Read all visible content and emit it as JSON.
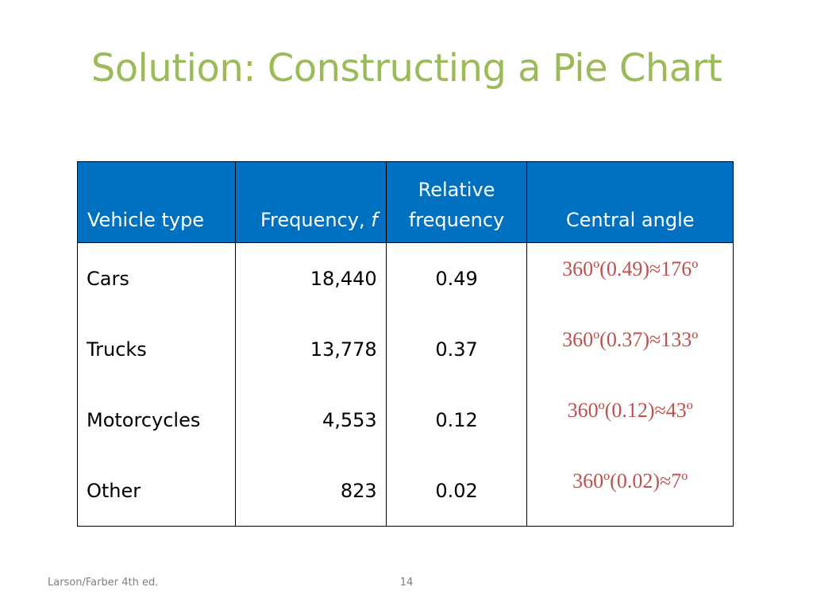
{
  "slide": {
    "title": "Solution: Constructing a Pie Chart",
    "footer_left": "Larson/Farber 4th ed.",
    "page_number": "14"
  },
  "table": {
    "headers": {
      "vehicle_type": "Vehicle type",
      "frequency_label": "Frequency,",
      "frequency_symbol": "f",
      "relative_line1": "Relative",
      "relative_line2": "frequency",
      "central_angle": "Central angle"
    },
    "rows": [
      {
        "vehicle": "Cars",
        "frequency": "18,440",
        "relative": "0.49",
        "angle": "360º(0.49)≈176º"
      },
      {
        "vehicle": "Trucks",
        "frequency": "13,778",
        "relative": "0.37",
        "angle": "360º(0.37)≈133º"
      },
      {
        "vehicle": "Motorcycles",
        "frequency": "4,553",
        "relative": "0.12",
        "angle": "360º(0.12)≈43º"
      },
      {
        "vehicle": "Other",
        "frequency": "823",
        "relative": "0.02",
        "angle": "360º(0.02)≈7º"
      }
    ]
  },
  "colors": {
    "title": "#9bbb59",
    "header_bg": "#0070c0",
    "angle_text": "#c0504d"
  }
}
